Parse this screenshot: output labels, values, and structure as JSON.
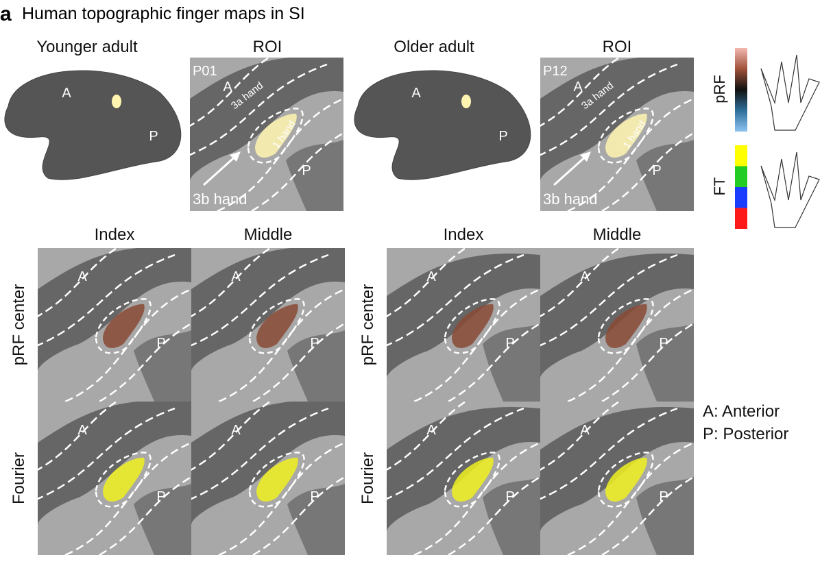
{
  "panel": {
    "letter": "a",
    "title": "Human topographic finger maps in SI"
  },
  "top_row": [
    {
      "heading": "Younger adult",
      "marks": [
        "A",
        "P"
      ]
    },
    {
      "heading": "ROI",
      "participant": "P01",
      "marks": [
        "A",
        "P"
      ],
      "areas": [
        "3a hand",
        "1 hand",
        "3b hand"
      ]
    },
    {
      "heading": "Older adult",
      "marks": [
        "A",
        "P"
      ]
    },
    {
      "heading": "ROI",
      "participant": "P12",
      "marks": [
        "A",
        "P"
      ],
      "areas": [
        "3a hand",
        "1 hand",
        "3b hand"
      ]
    }
  ],
  "legends": [
    {
      "label": "pRF"
    },
    {
      "label": "FT"
    }
  ],
  "grids": [
    {
      "columns": [
        "Index",
        "Middle"
      ],
      "rows": [
        "pRF center",
        "Fourier"
      ],
      "cells": [
        [
          [
            "A",
            "P"
          ],
          [
            "A",
            "P"
          ]
        ],
        [
          [
            "A",
            "P"
          ],
          [
            "A",
            "P"
          ]
        ]
      ]
    },
    {
      "columns": [
        "Index",
        "Middle"
      ],
      "rows": [
        "pRF center",
        "Fourier"
      ],
      "cells": [
        [
          [
            "A",
            "P"
          ],
          [
            "A",
            "P"
          ]
        ],
        [
          [
            "A",
            "P"
          ],
          [
            "A",
            "P"
          ]
        ]
      ]
    }
  ],
  "key": [
    "A: Anterior",
    "P: Posterior"
  ]
}
